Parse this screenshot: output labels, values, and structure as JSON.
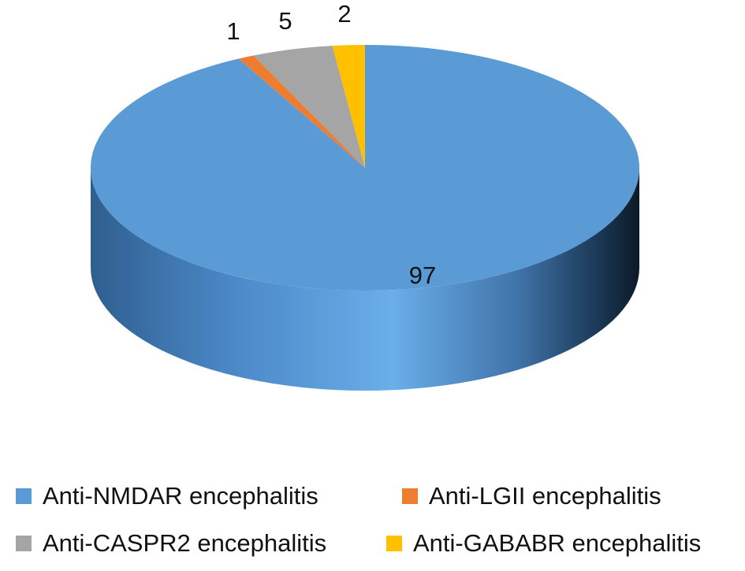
{
  "chart_data": {
    "type": "pie",
    "style": "3d",
    "categories": [
      "Anti-NMDAR encephalitis",
      "Anti-LGII encephalitis",
      "Anti-CASPR2 encephalitis",
      "Anti-GABABR encephalitis"
    ],
    "values": [
      97,
      1,
      5,
      2
    ],
    "data_labels": [
      "97",
      "1",
      "5",
      "2"
    ],
    "colors": [
      "#5B9BD5",
      "#ED7D31",
      "#A5A5A5",
      "#FFC000"
    ],
    "legend_position": "bottom"
  }
}
